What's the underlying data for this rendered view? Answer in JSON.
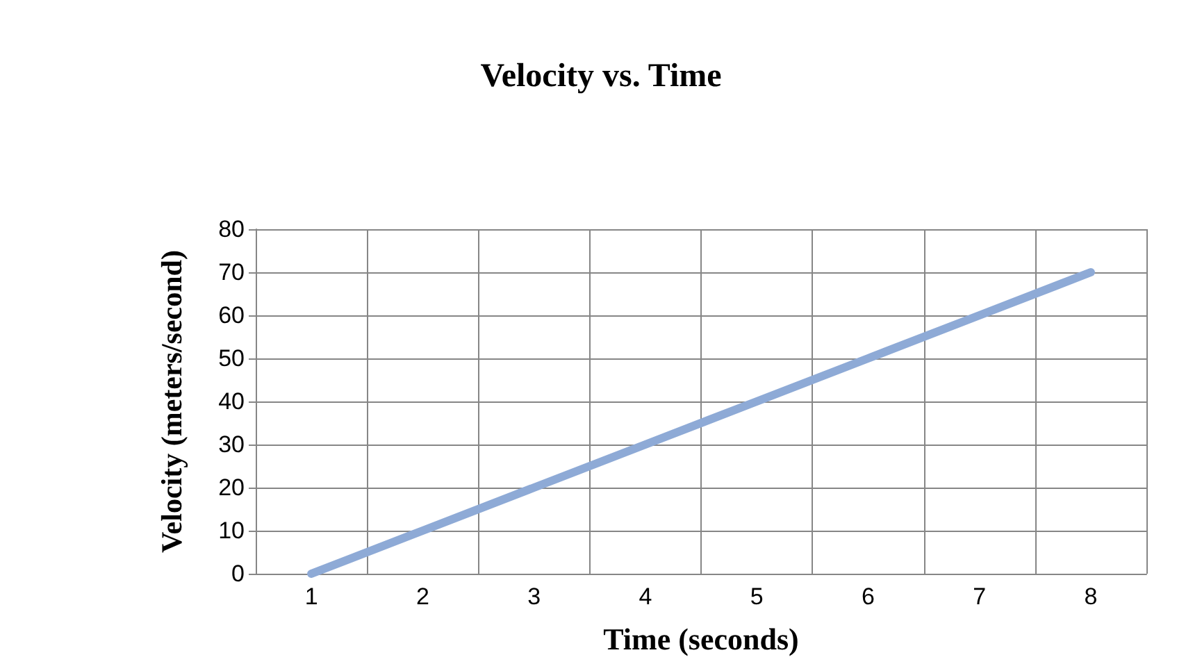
{
  "chart_data": {
    "type": "line",
    "title": "Velocity vs. Time",
    "xlabel": "Time (seconds)",
    "ylabel": "Velocity (meters/second)",
    "categories": [
      "1",
      "2",
      "3",
      "4",
      "5",
      "6",
      "7",
      "8"
    ],
    "series": [
      {
        "color": "#8eaad6",
        "values": [
          0,
          10,
          20,
          30,
          40,
          50,
          60,
          70
        ]
      }
    ],
    "ylim": [
      0,
      80
    ],
    "yticks": [
      0,
      10,
      20,
      30,
      40,
      50,
      60,
      70,
      80
    ],
    "grid": true,
    "marker": "none",
    "line_style": "solid"
  }
}
